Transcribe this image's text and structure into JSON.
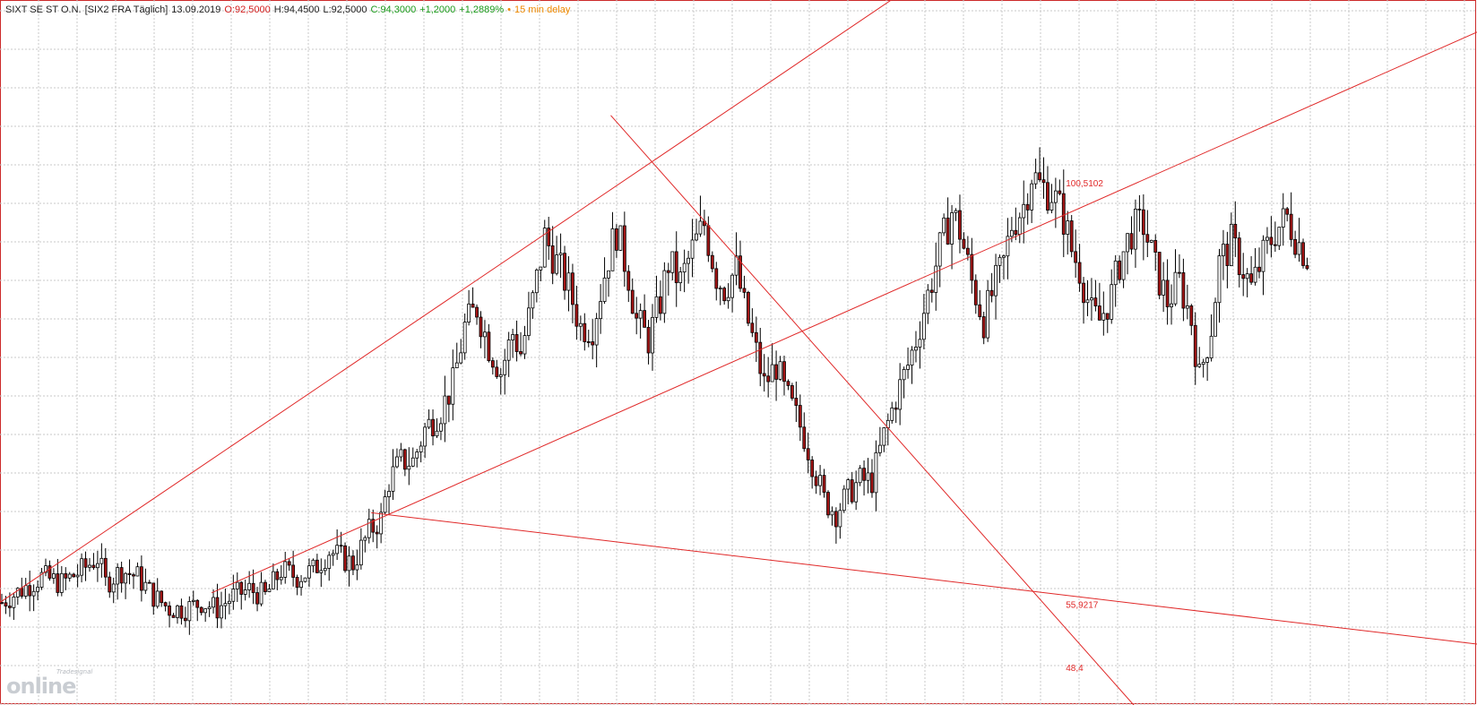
{
  "header": {
    "instrument": "SIXT SE ST O.N.",
    "exchange": "[SIX2 FRA Täglich]",
    "date": "13.09.2019",
    "open": "O:92,5000",
    "high": "H:94,4500",
    "low": "L:92,5000",
    "close": "C:94,3000",
    "change": "+1,2000",
    "change_pct": "+1,2889%",
    "delay_bullet": "•",
    "delay": "15 min delay"
  },
  "watermark": {
    "big": "online",
    "small": "Tradesignal"
  },
  "colors": {
    "trendline": "#e02828",
    "grid": "#c8c8c8",
    "candle_up": "#ffffff",
    "candle_down": "#a31515",
    "wick": "#000000",
    "frame": "#cc2a2a"
  },
  "chart_data": {
    "type": "candlestick",
    "symbol": "SIXT SE ST O.N.",
    "grid": true,
    "ylim": [
      40,
      150
    ],
    "x_range": [
      0,
      370
    ],
    "path": [
      [
        0,
        56
      ],
      [
        5,
        58
      ],
      [
        10,
        60
      ],
      [
        15,
        59
      ],
      [
        20,
        61
      ],
      [
        24,
        63
      ],
      [
        26,
        59
      ],
      [
        30,
        61
      ],
      [
        34,
        60
      ],
      [
        38,
        57
      ],
      [
        42,
        55
      ],
      [
        46,
        55
      ],
      [
        50,
        56
      ],
      [
        54,
        55
      ],
      [
        58,
        57
      ],
      [
        62,
        58
      ],
      [
        66,
        57
      ],
      [
        70,
        61
      ],
      [
        74,
        60
      ],
      [
        78,
        61
      ],
      [
        82,
        64
      ],
      [
        85,
        63
      ],
      [
        88,
        62
      ],
      [
        92,
        67
      ],
      [
        95,
        69
      ],
      [
        97,
        75
      ],
      [
        100,
        78
      ],
      [
        103,
        78
      ],
      [
        106,
        83
      ],
      [
        110,
        86
      ],
      [
        113,
        90
      ],
      [
        116,
        99
      ],
      [
        119,
        102
      ],
      [
        122,
        96
      ],
      [
        125,
        92
      ],
      [
        128,
        98
      ],
      [
        130,
        95
      ],
      [
        133,
        103
      ],
      [
        136,
        113
      ],
      [
        139,
        109
      ],
      [
        142,
        105
      ],
      [
        145,
        99
      ],
      [
        148,
        99
      ],
      [
        152,
        110
      ],
      [
        154,
        114
      ],
      [
        157,
        107
      ],
      [
        159,
        100
      ],
      [
        162,
        97
      ],
      [
        165,
        103
      ],
      [
        167,
        109
      ],
      [
        170,
        106
      ],
      [
        173,
        111
      ],
      [
        176,
        115
      ],
      [
        179,
        107
      ],
      [
        181,
        105
      ],
      [
        184,
        108
      ],
      [
        186,
        102
      ],
      [
        189,
        95
      ],
      [
        191,
        90
      ],
      [
        194,
        93
      ],
      [
        196,
        89
      ],
      [
        199,
        85
      ],
      [
        201,
        82
      ],
      [
        204,
        76
      ],
      [
        206,
        72
      ],
      [
        209,
        70
      ],
      [
        212,
        73
      ],
      [
        215,
        75
      ],
      [
        218,
        75
      ],
      [
        221,
        82
      ],
      [
        224,
        88
      ],
      [
        227,
        93
      ],
      [
        229,
        97
      ],
      [
        232,
        104
      ],
      [
        235,
        111
      ],
      [
        238,
        117
      ],
      [
        240,
        114
      ],
      [
        243,
        106
      ],
      [
        246,
        100
      ],
      [
        248,
        104
      ],
      [
        251,
        109
      ],
      [
        253,
        115
      ],
      [
        256,
        118
      ],
      [
        258,
        123
      ],
      [
        260,
        121
      ],
      [
        263,
        120
      ],
      [
        266,
        116
      ],
      [
        268,
        111
      ],
      [
        270,
        108
      ],
      [
        273,
        101
      ],
      [
        275,
        100
      ],
      [
        278,
        104
      ],
      [
        280,
        109
      ],
      [
        283,
        114
      ],
      [
        286,
        115
      ],
      [
        289,
        108
      ],
      [
        292,
        103
      ],
      [
        295,
        106
      ],
      [
        298,
        100
      ],
      [
        300,
        91
      ],
      [
        303,
        99
      ],
      [
        305,
        109
      ],
      [
        308,
        112
      ],
      [
        311,
        108
      ],
      [
        313,
        105
      ],
      [
        316,
        110
      ],
      [
        319,
        114
      ],
      [
        322,
        116
      ],
      [
        325,
        112
      ],
      [
        327,
        110
      ]
    ],
    "last_close": 94.3,
    "trendlines": [
      {
        "from": [
          0,
          56.0
        ],
        "to": [
          228,
          152.0
        ]
      },
      {
        "from": [
          53,
          57.5
        ],
        "to": [
          370,
          145.0
        ]
      },
      {
        "from": [
          153,
          132.0
        ],
        "to": [
          284,
          40.0
        ]
      },
      {
        "from": [
          93,
          70.0
        ],
        "to": [
          370,
          49.5
        ]
      }
    ],
    "level_labels": [
      {
        "text": "100,5102",
        "x": 267,
        "y": 120.9
      },
      {
        "text": "55,9217",
        "x": 267,
        "y": 55.2
      },
      {
        "text": "48,4",
        "x": 267,
        "y": 45.3
      }
    ]
  }
}
